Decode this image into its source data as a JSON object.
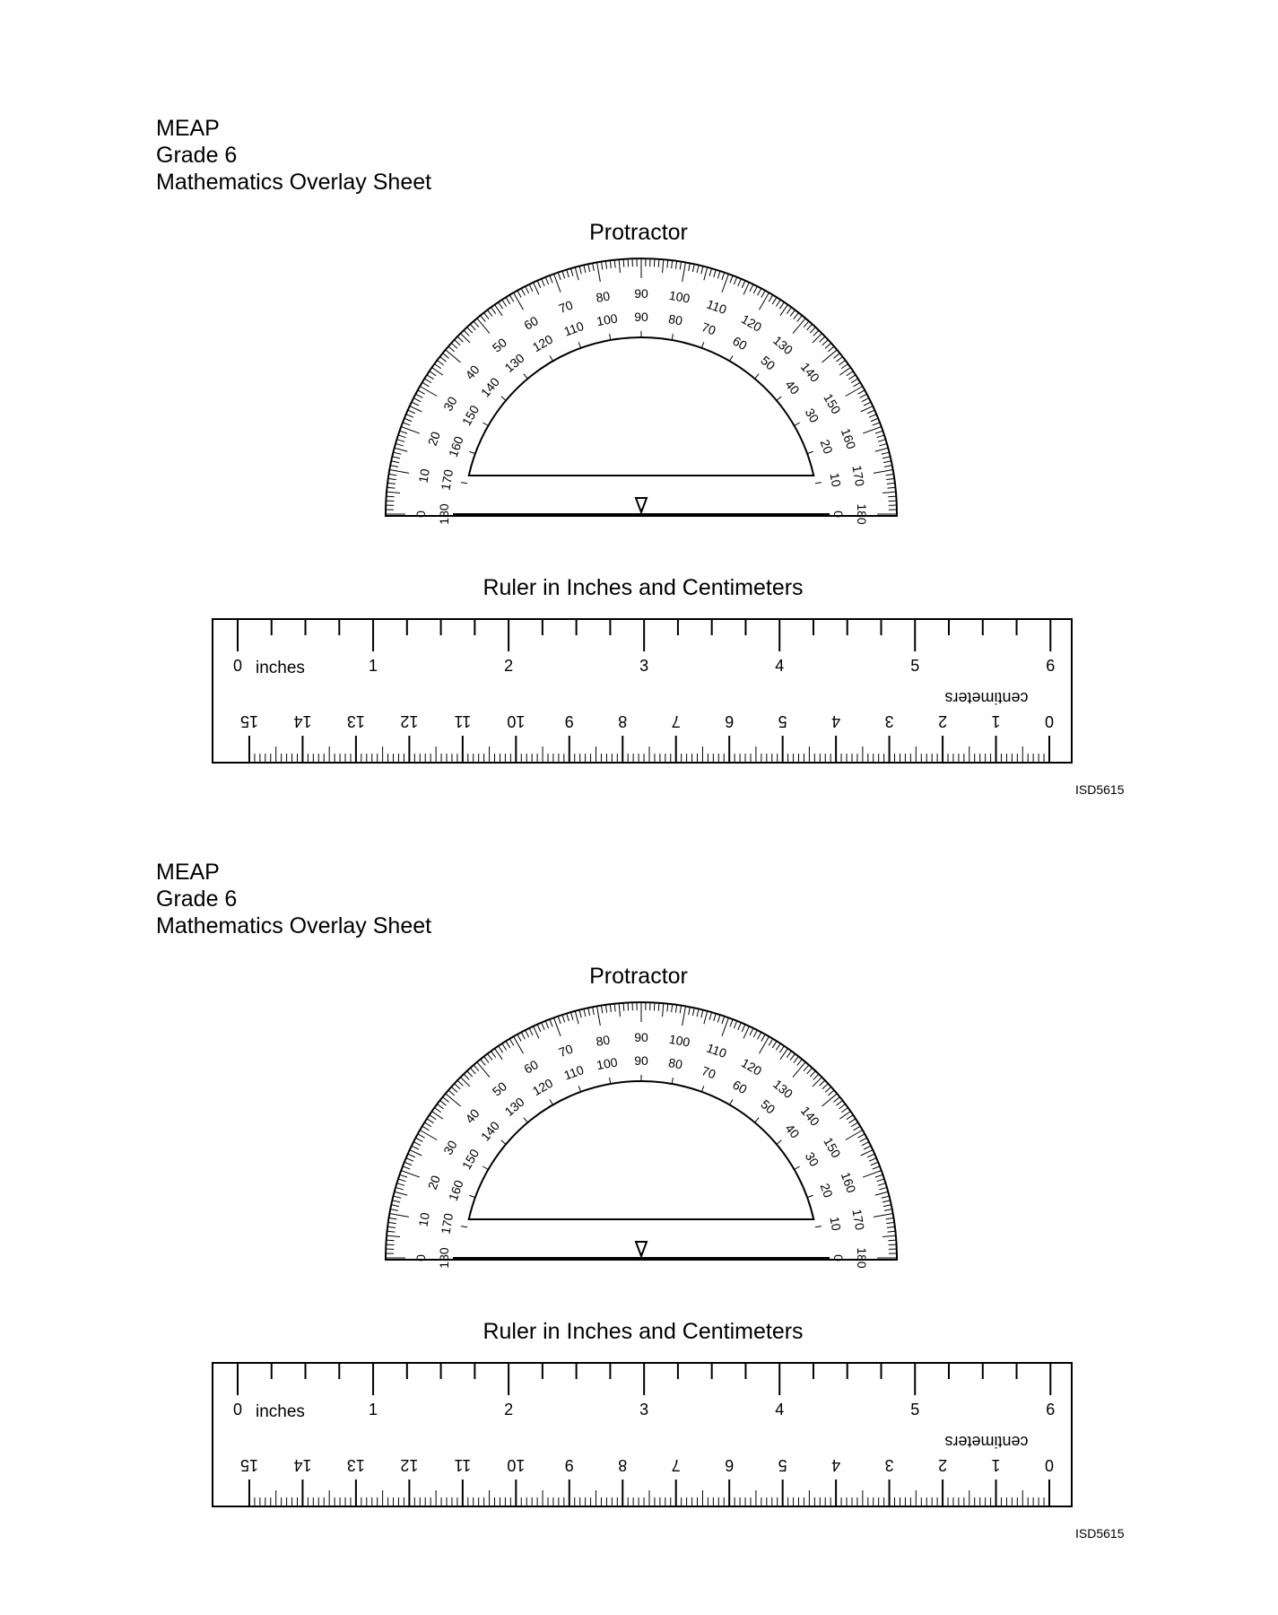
{
  "sheets": [
    {
      "header": {
        "line1": "MEAP",
        "line2": "Grade 6",
        "line3": "Mathematics Overlay Sheet"
      },
      "protractor_title": "Protractor",
      "ruler_title": "Ruler in Inches and Centimeters",
      "ruler": {
        "inches_label": "inches",
        "centimeters_label": "centimeters"
      },
      "code": "ISD5615"
    },
    {
      "header": {
        "line1": "MEAP",
        "line2": "Grade 6",
        "line3": "Mathematics Overlay Sheet"
      },
      "protractor_title": "Protractor",
      "ruler_title": "Ruler in Inches and Centimeters",
      "ruler": {
        "inches_label": "inches",
        "centimeters_label": "centimeters"
      },
      "code": "ISD5615"
    }
  ],
  "protractor_scale": {
    "outer_labels": [
      "0",
      "10",
      "20",
      "30",
      "40",
      "50",
      "60",
      "70",
      "80",
      "90",
      "100",
      "110",
      "120",
      "130",
      "140",
      "150",
      "160",
      "170",
      "180"
    ],
    "inner_labels": [
      "180",
      "170",
      "160",
      "150",
      "140",
      "130",
      "120",
      "110",
      "100",
      "90",
      "80",
      "70",
      "60",
      "50",
      "40",
      "30",
      "20",
      "10",
      "0"
    ]
  },
  "ruler_scale": {
    "inch_labels": [
      "0",
      "1",
      "2",
      "3",
      "4",
      "5",
      "6"
    ],
    "cm_labels": [
      "0",
      "1",
      "2",
      "3",
      "4",
      "5",
      "6",
      "7",
      "8",
      "9",
      "10",
      "11",
      "12",
      "13",
      "14",
      "15"
    ]
  }
}
